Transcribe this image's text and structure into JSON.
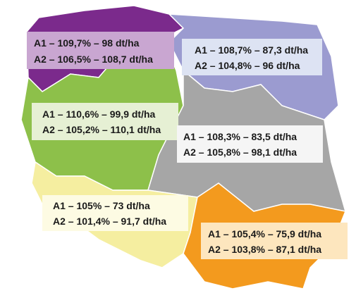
{
  "regions": [
    {
      "line1": "A1 – 109,7% – 98 dt/ha",
      "line2": "A2 – 106,5% – 108,7 dt/ha"
    },
    {
      "line1": "A1 – 108,7% – 87,3 dt/ha",
      "line2": "A2 – 104,8% – 96 dt/ha"
    },
    {
      "line1": "A1 – 110,6% – 99,9 dt/ha",
      "line2": "A2 – 105,2% – 110,1 dt/ha"
    },
    {
      "line1": "A1 – 108,3% – 83,5 dt/ha",
      "line2": "A2 – 105,8% – 98,1 dt/ha"
    },
    {
      "line1": "A1 – 105% – 73 dt/ha",
      "line2": "A2 – 101,4% – 91,7 dt/ha"
    },
    {
      "line1": "A1 – 105,4% – 75,9 dt/ha",
      "line2": "A2 – 103,8% – 87,1 dt/ha"
    }
  ]
}
